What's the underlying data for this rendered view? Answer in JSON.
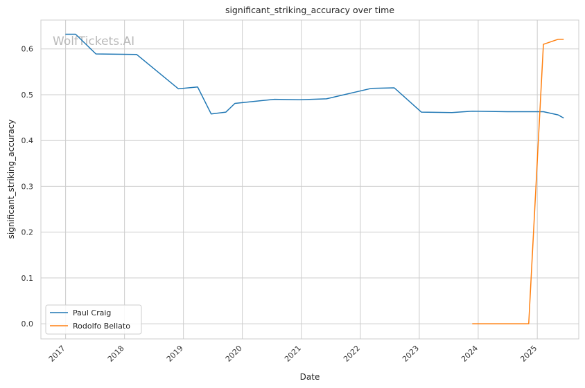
{
  "chart_data": {
    "type": "line",
    "title": "significant_striking_accuracy over time",
    "xlabel": "Date",
    "ylabel": "significant_striking_accuracy",
    "watermark": "WolfTickets.AI",
    "x_axis_type": "date",
    "xlim": [
      "2016-08-01",
      "2025-09-15"
    ],
    "ylim": [
      -0.033,
      0.663
    ],
    "x_ticks": [
      "2017",
      "2018",
      "2019",
      "2020",
      "2021",
      "2022",
      "2023",
      "2024",
      "2025"
    ],
    "y_ticks": [
      "0.0",
      "0.1",
      "0.2",
      "0.3",
      "0.4",
      "0.5",
      "0.6"
    ],
    "grid": true,
    "legend_position": "lower-left",
    "series": [
      {
        "name": "Paul Craig",
        "color": "#1f77b4",
        "points": [
          [
            "2016-12-31",
            0.632
          ],
          [
            "2017-03-04",
            0.632
          ],
          [
            "2017-07-08",
            0.589
          ],
          [
            "2018-03-17",
            0.588
          ],
          [
            "2018-12-01",
            0.513
          ],
          [
            "2019-03-30",
            0.517
          ],
          [
            "2019-06-22",
            0.458
          ],
          [
            "2019-09-21",
            0.462
          ],
          [
            "2019-11-16",
            0.481
          ],
          [
            "2020-07-18",
            0.49
          ],
          [
            "2020-12-19",
            0.489
          ],
          [
            "2021-06-05",
            0.491
          ],
          [
            "2022-03-12",
            0.514
          ],
          [
            "2022-07-30",
            0.515
          ],
          [
            "2023-01-14",
            0.462
          ],
          [
            "2023-07-22",
            0.461
          ],
          [
            "2023-11-25",
            0.464
          ],
          [
            "2024-06-29",
            0.463
          ],
          [
            "2025-02-08",
            0.463
          ],
          [
            "2025-05-10",
            0.456
          ],
          [
            "2025-06-14",
            0.449
          ]
        ]
      },
      {
        "name": "Rodolfo Bellato",
        "color": "#ff7f0e",
        "points": [
          [
            "2023-11-25",
            0.0
          ],
          [
            "2024-11-09",
            0.0
          ],
          [
            "2025-02-08",
            0.61
          ],
          [
            "2025-05-10",
            0.621
          ],
          [
            "2025-06-14",
            0.621
          ]
        ]
      }
    ]
  }
}
